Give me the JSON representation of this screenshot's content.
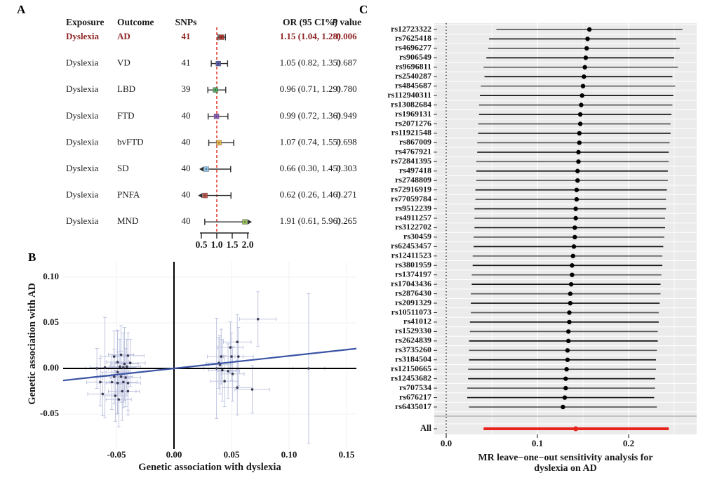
{
  "figure": {
    "panels": {
      "a": "A",
      "b": "B",
      "c": "C"
    }
  },
  "chart_data": [
    {
      "id": "A",
      "type": "table",
      "subtype": "forest",
      "columns": [
        "Exposure",
        "Outcome",
        "SNPs",
        "OR (95 CI%)",
        "P value"
      ],
      "rows": [
        {
          "exposure": "Dyslexia",
          "outcome": "AD",
          "snps": "41",
          "or_text": "1.15 (1.04, 1.28)",
          "p": "0.006",
          "est": 1.15,
          "lo": 1.04,
          "hi": 1.28,
          "color": "#A93B32",
          "trunc": null,
          "highlight": true
        },
        {
          "exposure": "Dyslexia",
          "outcome": "VD",
          "snps": "41",
          "or_text": "1.05 (0.82, 1.35)",
          "p": "0.687",
          "est": 1.05,
          "lo": 0.82,
          "hi": 1.35,
          "color": "#5D61AB",
          "trunc": null,
          "highlight": false
        },
        {
          "exposure": "Dyslexia",
          "outcome": "LBD",
          "snps": "39",
          "or_text": "0.96 (0.71, 1.29)",
          "p": "0.780",
          "est": 0.96,
          "lo": 0.71,
          "hi": 1.29,
          "color": "#55A868",
          "trunc": null,
          "highlight": false
        },
        {
          "exposure": "Dyslexia",
          "outcome": "FTD",
          "snps": "40",
          "or_text": "0.99 (0.72, 1.36)",
          "p": "0.949",
          "est": 0.99,
          "lo": 0.72,
          "hi": 1.36,
          "color": "#8D5FB8",
          "trunc": null,
          "highlight": false
        },
        {
          "exposure": "Dyslexia",
          "outcome": "bvFTD",
          "snps": "40",
          "or_text": "1.07 (0.74, 1.55)",
          "p": "0.698",
          "est": 1.07,
          "lo": 0.74,
          "hi": 1.55,
          "color": "#E9B84E",
          "trunc": null,
          "highlight": false
        },
        {
          "exposure": "Dyslexia",
          "outcome": "SD",
          "snps": "40",
          "or_text": "0.66 (0.30, 1.45)",
          "p": "0.303",
          "est": 0.66,
          "lo": 0.3,
          "hi": 1.45,
          "color": "#8FC4E8",
          "trunc": "low",
          "highlight": false
        },
        {
          "exposure": "Dyslexia",
          "outcome": "PNFA",
          "snps": "40",
          "or_text": "0.62 (0.26, 1.46)",
          "p": "0.271",
          "est": 0.62,
          "lo": 0.26,
          "hi": 1.46,
          "color": "#BE5A50",
          "trunc": "low",
          "highlight": false
        },
        {
          "exposure": "Dyslexia",
          "outcome": "MND",
          "snps": "40",
          "or_text": "1.91 (0.61, 5.96)",
          "p": "0.265",
          "est": 1.91,
          "lo": 0.61,
          "hi": 5.96,
          "color": "#97BE5F",
          "trunc": "high",
          "highlight": false
        }
      ],
      "axis": {
        "ticks": [
          "0.5",
          "1.0",
          "1.5",
          "2.0"
        ],
        "tick_values": [
          0.5,
          1.0,
          1.5,
          2.0
        ],
        "min": 0.5,
        "max": 2.0,
        "refline": 1.0,
        "refline_color": "#DD4035"
      },
      "highlight_color": "#8E2626",
      "text_color": "#1a1a1a"
    },
    {
      "id": "B",
      "type": "scatter",
      "xlabel": "Genetic association with dyslexia",
      "ylabel": "Genetic association with AD",
      "xtick_labels": [
        "-0.05",
        "0.00",
        "0.05",
        "0.10",
        "0.15"
      ],
      "xticks": [
        -0.05,
        0.0,
        0.05,
        0.1,
        0.15
      ],
      "ytick_labels": [
        "0.10",
        "0.05",
        "0.00",
        "-0.05"
      ],
      "yticks": [
        0.1,
        0.05,
        0.0,
        -0.05
      ],
      "xlim": [
        -0.096,
        0.158
      ],
      "ylim": [
        -0.088,
        0.117
      ],
      "regression": {
        "slope": 0.137,
        "intercept": 0.0,
        "color": "#3A53A4"
      },
      "errorbar_color": "#B9BFDD",
      "point_color": "#3C3C55",
      "points": [
        [
          -0.06,
          0.001,
          0.013,
          0.055
        ],
        [
          -0.067,
          0.0,
          0.01,
          0.022
        ],
        [
          -0.052,
          0.013,
          0.012,
          0.028
        ],
        [
          -0.046,
          0.015,
          0.011,
          0.032
        ],
        [
          -0.04,
          0.014,
          0.014,
          0.025
        ],
        [
          -0.049,
          0.007,
          0.01,
          0.035
        ],
        [
          -0.043,
          0.005,
          0.012,
          0.04
        ],
        [
          -0.038,
          0.006,
          0.013,
          0.026
        ],
        [
          -0.047,
          0.002,
          0.009,
          0.03
        ],
        [
          -0.044,
          0.001,
          0.011,
          0.038
        ],
        [
          -0.041,
          0.002,
          0.012,
          0.03
        ],
        [
          -0.049,
          -0.004,
          0.01,
          0.045
        ],
        [
          -0.052,
          -0.009,
          0.012,
          0.03
        ],
        [
          -0.046,
          -0.009,
          0.01,
          0.028
        ],
        [
          -0.042,
          -0.01,
          0.013,
          0.032
        ],
        [
          -0.064,
          -0.015,
          0.012,
          0.026
        ],
        [
          -0.054,
          -0.015,
          0.011,
          0.03
        ],
        [
          -0.049,
          -0.016,
          0.01,
          0.034
        ],
        [
          -0.044,
          -0.015,
          0.012,
          0.028
        ],
        [
          -0.04,
          -0.016,
          0.011,
          0.03
        ],
        [
          -0.062,
          -0.028,
          0.013,
          0.024
        ],
        [
          -0.051,
          -0.03,
          0.011,
          0.028
        ],
        [
          -0.045,
          -0.025,
          0.012,
          0.032
        ],
        [
          -0.04,
          -0.025,
          0.01,
          0.026
        ],
        [
          -0.048,
          -0.034,
          0.011,
          0.03
        ],
        [
          0.073,
          0.054,
          0.016,
          0.03
        ],
        [
          0.055,
          0.029,
          0.012,
          0.03
        ],
        [
          0.049,
          0.023,
          0.011,
          0.028
        ],
        [
          0.056,
          0.013,
          0.013,
          0.032
        ],
        [
          0.05,
          0.013,
          0.01,
          0.026
        ],
        [
          0.041,
          0.013,
          0.012,
          0.03
        ],
        [
          0.039,
          0.006,
          0.011,
          0.028
        ],
        [
          0.042,
          -0.002,
          0.012,
          0.034
        ],
        [
          0.051,
          -0.006,
          0.01,
          0.03
        ],
        [
          0.044,
          -0.014,
          0.012,
          0.028
        ],
        [
          0.055,
          -0.021,
          0.013,
          0.03
        ],
        [
          0.068,
          -0.023,
          0.015,
          0.026
        ],
        [
          0.04,
          0.004,
          0.01,
          0.032
        ],
        [
          0.037,
          0.0,
          0.011,
          0.055
        ],
        [
          0.047,
          -0.003,
          0.01,
          0.03
        ],
        [
          0.117,
          0.0,
          0.014,
          0.082
        ]
      ]
    },
    {
      "id": "C",
      "type": "forest",
      "xlabel_line1": "MR leave−one−out sensitivity analysis for",
      "xlabel_line2": "dyslexia on AD",
      "xtick_labels": [
        "0.0",
        "0.1",
        "0.2"
      ],
      "xticks": [
        0.0,
        0.1,
        0.2
      ],
      "xlim": [
        -0.014,
        0.275
      ],
      "refline_x": 0.0,
      "panel_bg": "#EBEBEB",
      "line_color_a": "#5B5B5B",
      "line_color_b": "#141414",
      "dot_color": "#000000",
      "categories": [
        "rs12723322",
        "rs7625418",
        "rs4696277",
        "rs906549",
        "rs9696811",
        "rs2540287",
        "rs4845687",
        "rs112940311",
        "rs13082684",
        "rs1969131",
        "rs2071276",
        "rs11921548",
        "rs867009",
        "rs4767921",
        "rs72841395",
        "rs497418",
        "rs2748809",
        "rs72916919",
        "rs77059784",
        "rs9512239",
        "rs4911257",
        "rs3122702",
        "rs30459",
        "rs62453457",
        "rs12411523",
        "rs3801959",
        "rs1374197",
        "rs17043436",
        "rs2876430",
        "rs2091329",
        "rs10511073",
        "rs41012",
        "rs1529330",
        "rs2624839",
        "rs3735260",
        "rs3184504",
        "rs12150665",
        "rs12453682",
        "rs707534",
        "rs676217",
        "rs6435017"
      ],
      "estimates": [
        0.157,
        0.155,
        0.154,
        0.153,
        0.152,
        0.151,
        0.15,
        0.149,
        0.148,
        0.147,
        0.147,
        0.146,
        0.146,
        0.145,
        0.145,
        0.144,
        0.144,
        0.143,
        0.143,
        0.142,
        0.142,
        0.141,
        0.141,
        0.14,
        0.139,
        0.138,
        0.138,
        0.137,
        0.136,
        0.136,
        0.135,
        0.135,
        0.134,
        0.134,
        0.133,
        0.133,
        0.132,
        0.131,
        0.131,
        0.13,
        0.128
      ],
      "ci_low": [
        0.055,
        0.047,
        0.046,
        0.044,
        0.041,
        0.042,
        0.038,
        0.037,
        0.036,
        0.036,
        0.035,
        0.035,
        0.034,
        0.034,
        0.033,
        0.033,
        0.033,
        0.032,
        0.032,
        0.031,
        0.031,
        0.031,
        0.03,
        0.03,
        0.029,
        0.029,
        0.028,
        0.028,
        0.027,
        0.027,
        0.027,
        0.026,
        0.026,
        0.025,
        0.025,
        0.025,
        0.024,
        0.024,
        0.023,
        0.023,
        0.025
      ],
      "ci_high": [
        0.259,
        0.252,
        0.256,
        0.25,
        0.254,
        0.248,
        0.251,
        0.249,
        0.248,
        0.247,
        0.246,
        0.246,
        0.245,
        0.244,
        0.244,
        0.243,
        0.243,
        0.242,
        0.241,
        0.241,
        0.24,
        0.24,
        0.239,
        0.238,
        0.237,
        0.237,
        0.236,
        0.235,
        0.235,
        0.234,
        0.233,
        0.233,
        0.232,
        0.232,
        0.231,
        0.23,
        0.23,
        0.229,
        0.229,
        0.228,
        0.231
      ],
      "all": {
        "label": "All",
        "estimate": 0.142,
        "lo": 0.041,
        "hi": 0.244,
        "color": "#E8231C"
      }
    }
  ]
}
